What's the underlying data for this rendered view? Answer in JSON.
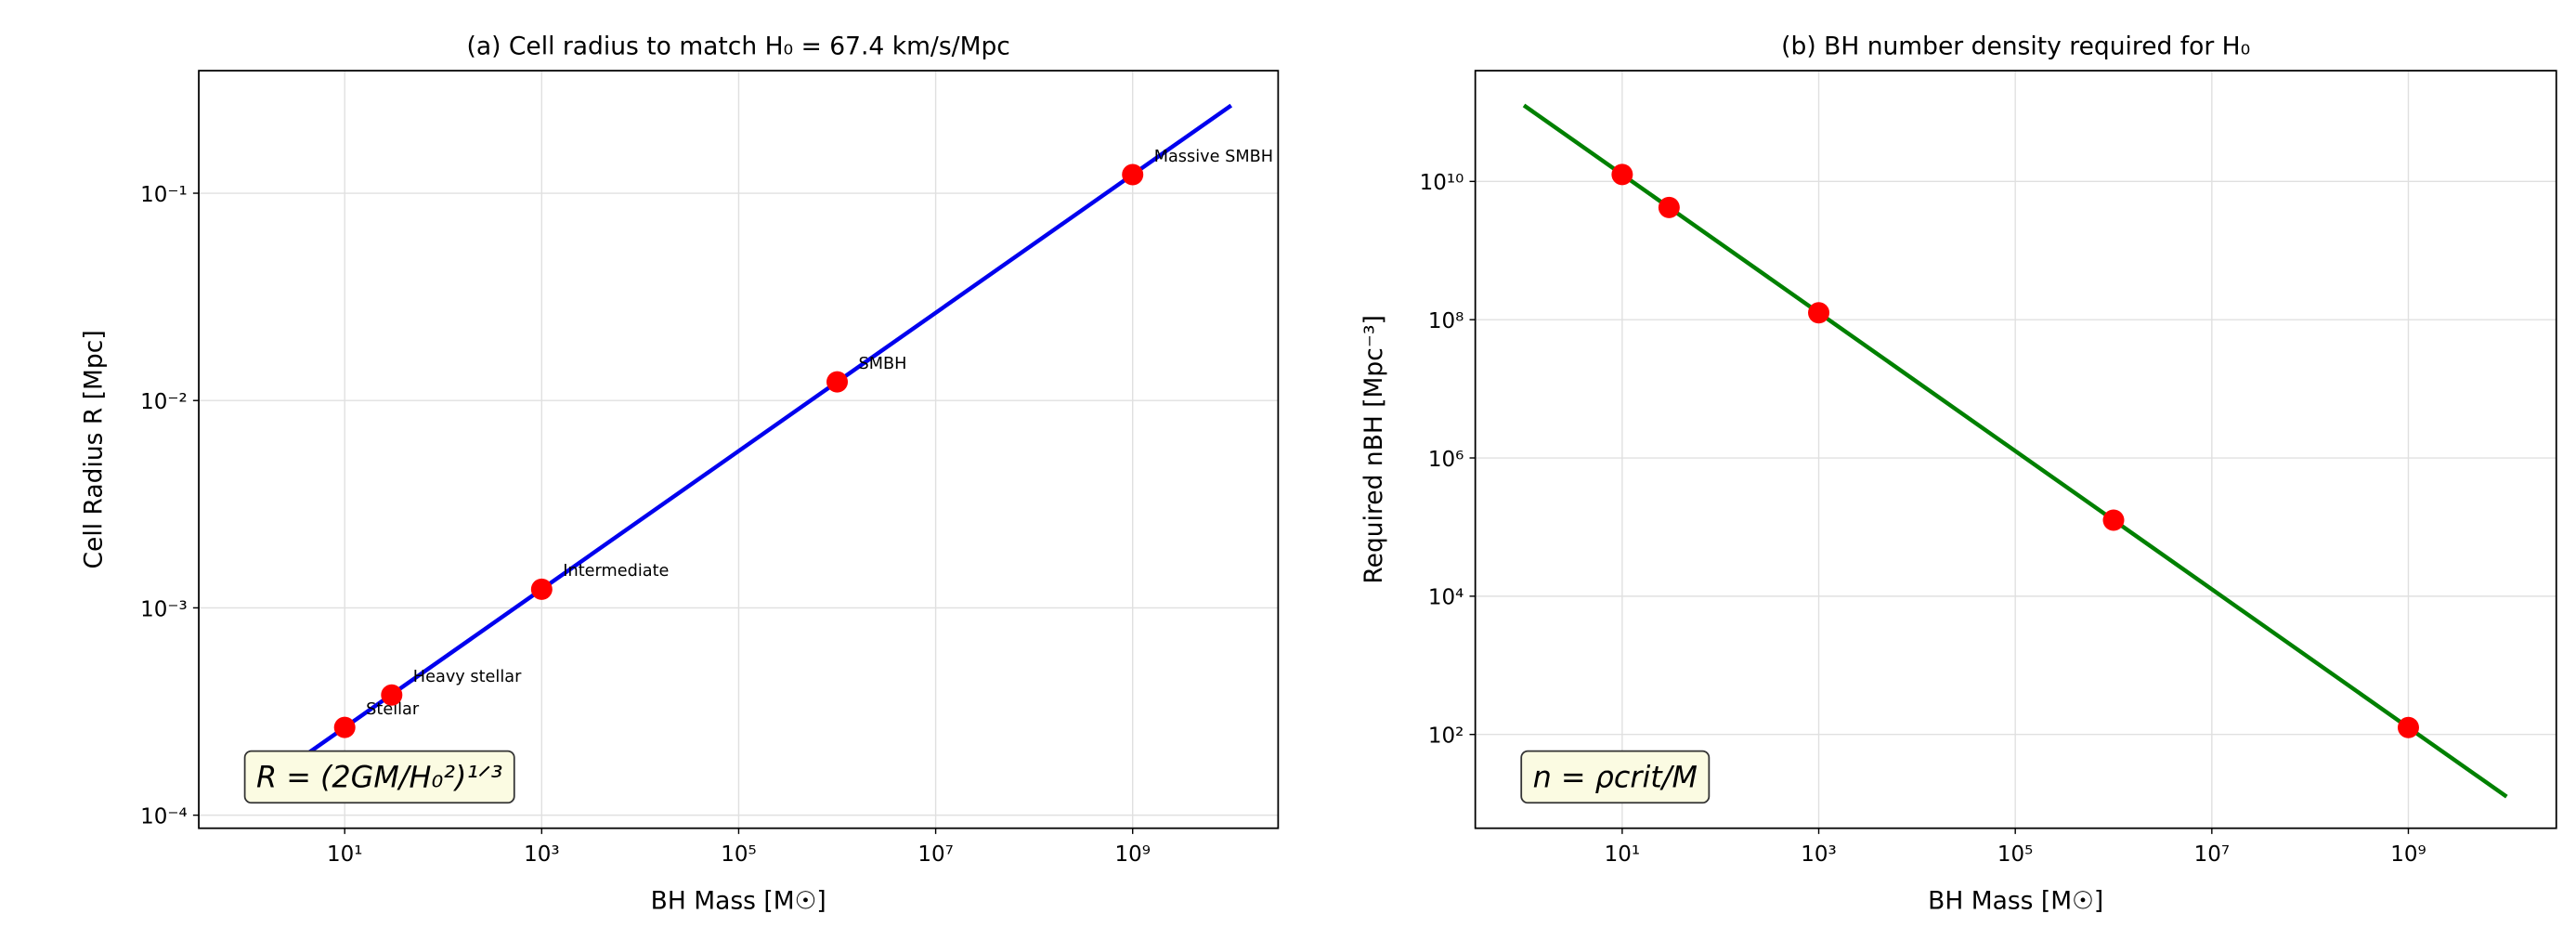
{
  "chart_data": [
    {
      "type": "line",
      "title": "(a) Cell radius to match H₀ = 67.4 km/s/Mpc",
      "xlabel": "BH Mass [M☉]",
      "ylabel": "Cell Radius R [Mpc]",
      "xscale": "log",
      "yscale": "log",
      "grid": true,
      "xlim": [
        0.33,
        30000000000
      ],
      "ylim": [
        8.65e-05,
        0.39
      ],
      "xticks": [
        {
          "value": 10,
          "label": "10¹"
        },
        {
          "value": 1000,
          "label": "10³"
        },
        {
          "value": 100000,
          "label": "10⁵"
        },
        {
          "value": 10000000,
          "label": "10⁷"
        },
        {
          "value": 1000000000,
          "label": "10⁹"
        }
      ],
      "yticks": [
        {
          "value": 0.0001,
          "label": "10⁻⁴"
        },
        {
          "value": 0.001,
          "label": "10⁻³"
        },
        {
          "value": 0.01,
          "label": "10⁻²"
        },
        {
          "value": 0.1,
          "label": "10⁻¹"
        }
      ],
      "line": {
        "color": "#0000ee",
        "x": [
          1,
          10000000000
        ],
        "values": [
          0.000123,
          0.265
        ]
      },
      "points": {
        "color": "#ff0000",
        "x": [
          10,
          30,
          1000,
          1000000,
          1000000000
        ],
        "values": [
          0.000265,
          0.00038,
          0.00123,
          0.0123,
          0.123
        ],
        "labels": [
          "Stellar",
          "Heavy stellar",
          "Intermediate",
          "SMBH",
          "Massive SMBH"
        ]
      },
      "formula": "R = (2GM/H₀²)¹ᐟ³"
    },
    {
      "type": "line",
      "title": "(b) BH number density required for H₀",
      "xlabel": "BH Mass [M☉]",
      "ylabel": "Required nBH [Mpc⁻³]",
      "xscale": "log",
      "yscale": "log",
      "grid": true,
      "xlim": [
        0.32,
        32000000000
      ],
      "ylim": [
        4.4,
        400000000000
      ],
      "xticks": [
        {
          "value": 10,
          "label": "10¹"
        },
        {
          "value": 1000,
          "label": "10³"
        },
        {
          "value": 100000,
          "label": "10⁵"
        },
        {
          "value": 10000000,
          "label": "10⁷"
        },
        {
          "value": 1000000000,
          "label": "10⁹"
        }
      ],
      "yticks": [
        {
          "value": 100,
          "label": "10²"
        },
        {
          "value": 10000,
          "label": "10⁴"
        },
        {
          "value": 1000000,
          "label": "10⁶"
        },
        {
          "value": 100000000,
          "label": "10⁸"
        },
        {
          "value": 10000000000,
          "label": "10¹⁰"
        }
      ],
      "line": {
        "color": "#008000",
        "x": [
          1,
          10000000000
        ],
        "values": [
          126000000000,
          12.6
        ]
      },
      "points": {
        "color": "#ff0000",
        "x": [
          10,
          30,
          1000,
          1000000,
          1000000000
        ],
        "values": [
          12600000000,
          4200000000,
          126000000,
          126000,
          126
        ]
      },
      "formula": "n = ρcrit/M"
    }
  ]
}
